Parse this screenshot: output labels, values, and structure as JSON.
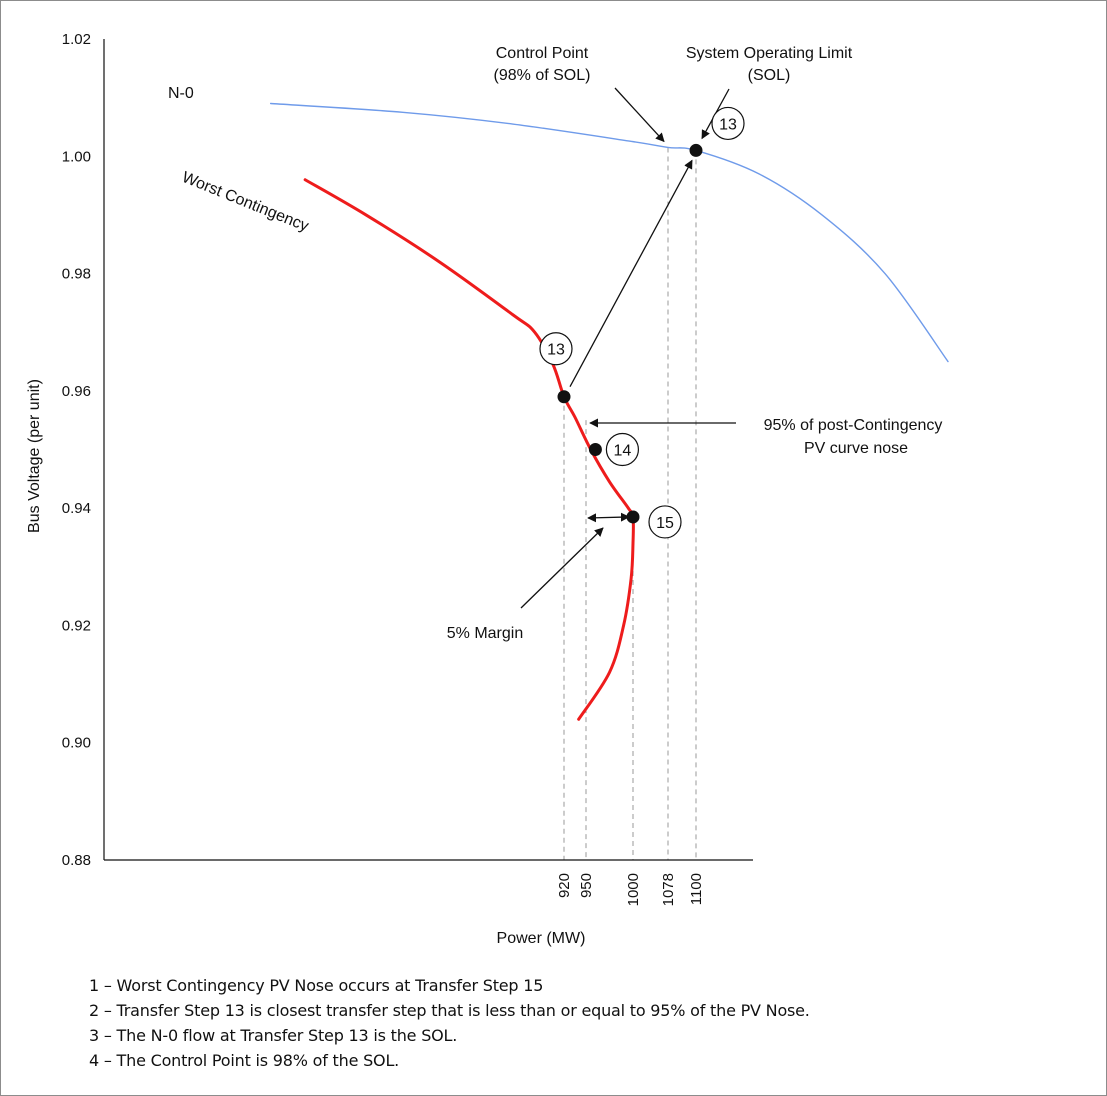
{
  "chart_data": {
    "type": "line",
    "xlabel": "Power (MW)",
    "ylabel": "Bus Voltage (per unit)",
    "ylim": [
      0.88,
      1.02
    ],
    "y_ticks": [
      "0.88",
      "0.90",
      "0.92",
      "0.94",
      "0.96",
      "0.98",
      "1.00",
      "1.02"
    ],
    "x_ticks": [
      "920",
      "950",
      "1000",
      "1078",
      "1100"
    ],
    "grid": false,
    "series": [
      {
        "name": "N-0",
        "color": "#6f9bea",
        "points": [
          [
            520,
            1.009
          ],
          [
            700,
            1.0075
          ],
          [
            850,
            1.0055
          ],
          [
            1000,
            1.0025
          ],
          [
            1078,
            1.0015
          ],
          [
            1100,
            1.001
          ],
          [
            1200,
            0.997
          ],
          [
            1300,
            0.99
          ],
          [
            1400,
            0.98
          ],
          [
            1500,
            0.965
          ]
        ]
      },
      {
        "name": "Worst Contingency",
        "color": "#ee1c1c",
        "points": [
          [
            567,
            0.996
          ],
          [
            650,
            0.99
          ],
          [
            750,
            0.982
          ],
          [
            850,
            0.973
          ],
          [
            880,
            0.97
          ],
          [
            905,
            0.9645
          ],
          [
            920,
            0.959
          ],
          [
            935,
            0.9555
          ],
          [
            955,
            0.95
          ],
          [
            975,
            0.9445
          ],
          [
            995,
            0.94
          ],
          [
            1000,
            0.9385
          ],
          [
            1000,
            0.934
          ],
          [
            998,
            0.928
          ],
          [
            990,
            0.92
          ],
          [
            975,
            0.912
          ],
          [
            940,
            0.904
          ]
        ]
      }
    ],
    "steps": [
      {
        "label": "13",
        "x": 1100,
        "y": 1.001
      },
      {
        "label": "13",
        "x": 920,
        "y": 0.959
      },
      {
        "label": "14",
        "x": 960,
        "y": 0.95
      },
      {
        "label": "15",
        "x": 1000,
        "y": 0.9385
      }
    ],
    "annotations": {
      "control_point": [
        "Control Point",
        "(98% of SOL)"
      ],
      "sol": [
        "System Operating Limit",
        "(SOL)"
      ],
      "nose_95": [
        "95% of post-Contingency",
        "PV curve nose"
      ],
      "margin": "5% Margin"
    }
  },
  "notes": [
    "1 – Worst Contingency PV Nose occurs at Transfer Step 15",
    "2 – Transfer Step 13 is closest transfer step that is less than or equal to 95% of the PV Nose.",
    "3 – The N-0 flow at Transfer Step 13 is the SOL.",
    "4 – The Control Point is 98% of the SOL."
  ]
}
